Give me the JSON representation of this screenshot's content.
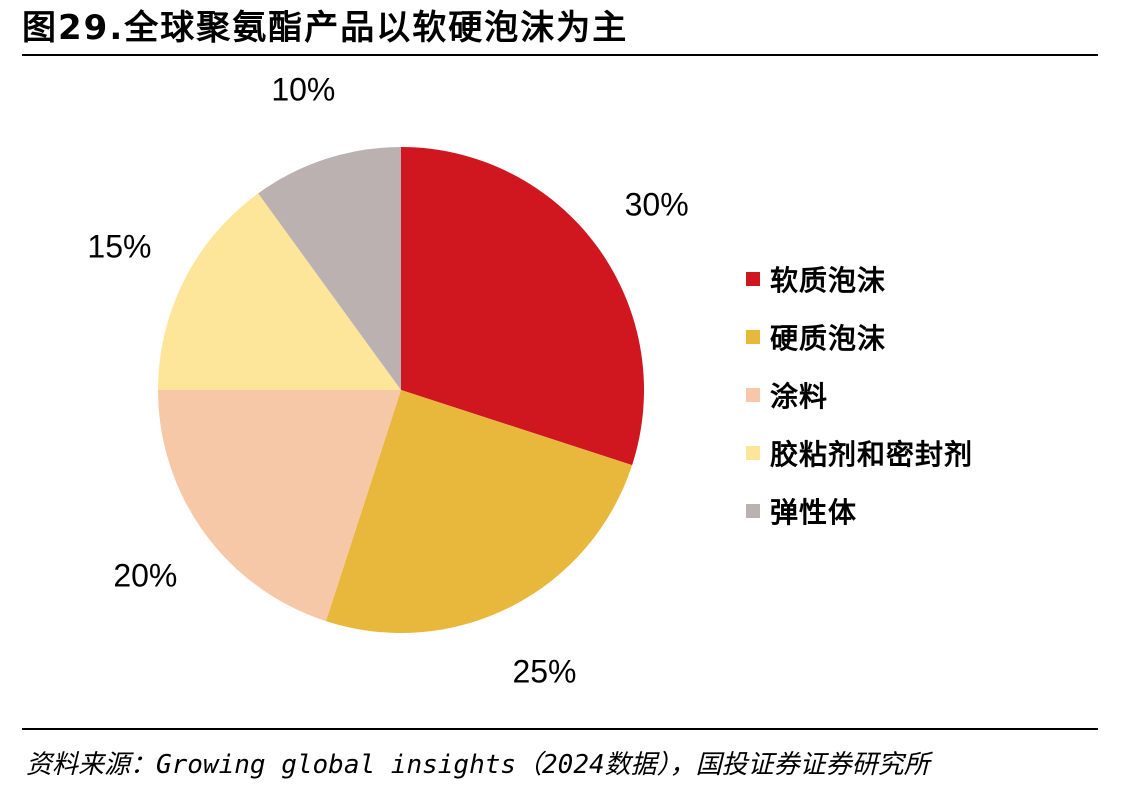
{
  "figure": {
    "title": "图29.全球聚氨酯产品以软硬泡沫为主",
    "source": "资料来源：Growing global insights（2024数据），国投证券证券研究所"
  },
  "chart_data": {
    "type": "pie",
    "title": "",
    "start_angle_deg": 0,
    "direction": "clockwise",
    "slices": [
      {
        "name": "软质泡沫",
        "value": 30,
        "label": "30%",
        "color": "#d0171f"
      },
      {
        "name": "硬质泡沫",
        "value": 25,
        "label": "25%",
        "color": "#e8b83c"
      },
      {
        "name": "涂料",
        "value": 20,
        "label": "20%",
        "color": "#f6c8a8"
      },
      {
        "name": "胶粘剂和密封剂",
        "value": 15,
        "label": "15%",
        "color": "#fde59a"
      },
      {
        "name": "弹性体",
        "value": 10,
        "label": "10%",
        "color": "#bbb1b1"
      }
    ],
    "legend_position": "right"
  }
}
